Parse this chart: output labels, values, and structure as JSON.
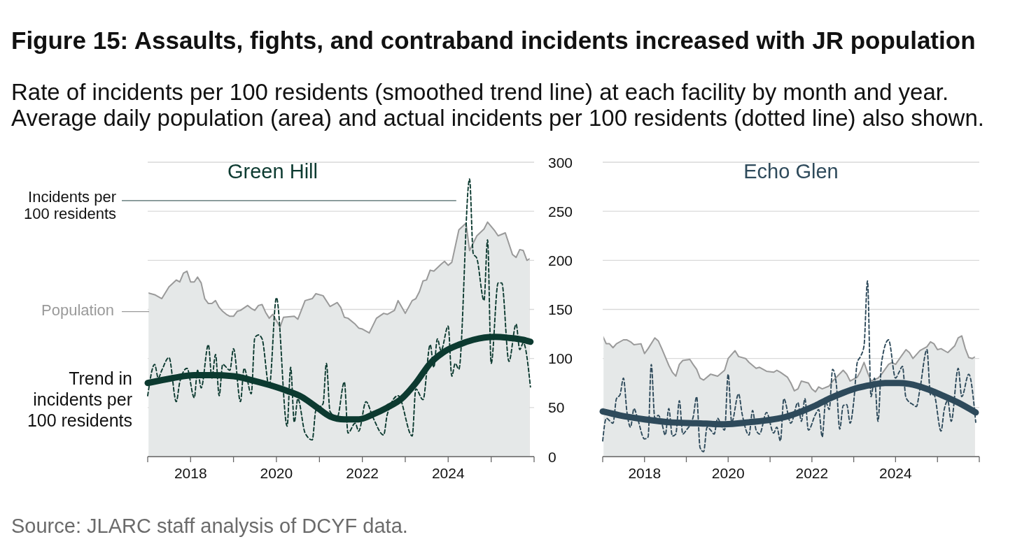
{
  "chart_data": [
    {
      "type": "other",
      "title": "Figure 15: Assaults, fights, and contraband incidents increased with JR population",
      "subtitle": "Rate of incidents per 100 residents (smoothed trend line) at each facility by month and year. Average daily population (area) and actual incidents per 100 residents (dotted line) also shown.",
      "annotations": [
        "Source: JLARC staff analysis of DCYF data."
      ]
    },
    {
      "type": "line",
      "title": "Green Hill",
      "xlim": [
        "2017",
        "2026"
      ],
      "xticks": [
        {
          "value": "2017",
          "label": null
        },
        "2018",
        {
          "value": "2019",
          "label": null
        },
        "2020",
        {
          "value": "2021",
          "label": null
        },
        "2022",
        {
          "value": "2023",
          "label": null
        },
        "2024",
        {
          "value": "2025",
          "label": null
        },
        {
          "value": "2026",
          "label": null
        }
      ],
      "ylim": [
        0,
        300
      ],
      "yticks": [
        0,
        50,
        100,
        150,
        200,
        250,
        300
      ],
      "grid": "y",
      "series": [
        {
          "name": "Population",
          "type": "area",
          "color": "#e5e8e8",
          "x": [
            "2017-01",
            "2017-03",
            "2017-05",
            "2017-07",
            "2017-09",
            "2017-10",
            "2017-11",
            "2017-12",
            "2018-01",
            "2018-02",
            "2018-03",
            "2018-04",
            "2018-05",
            "2018-06",
            "2018-07",
            "2018-08",
            "2018-09",
            "2018-10",
            "2018-11",
            "2018-12",
            "2019-01",
            "2019-02",
            "2019-03",
            "2019-05",
            "2019-06",
            "2019-07",
            "2019-08",
            "2019-09",
            "2019-10",
            "2019-11",
            "2019-12",
            "2020-02",
            "2020-03",
            "2020-06",
            "2020-07",
            "2020-09",
            "2020-11",
            "2020-12",
            "2021-02",
            "2021-04",
            "2021-06",
            "2021-07",
            "2021-08",
            "2021-09",
            "2021-11",
            "2021-12",
            "2022-01",
            "2022-03",
            "2022-05",
            "2022-07",
            "2022-08",
            "2022-10",
            "2022-11",
            "2023-01",
            "2023-03",
            "2023-04",
            "2023-05",
            "2023-06",
            "2023-07",
            "2023-08",
            "2023-09",
            "2023-11",
            "2023-12",
            "2024-01",
            "2024-02",
            "2024-04",
            "2024-06",
            "2024-07",
            "2024-09",
            "2024-11",
            "2024-12",
            "2025-02",
            "2025-03",
            "2025-05",
            "2025-07",
            "2025-08",
            "2025-09",
            "2025-10",
            "2025-11",
            "2025-12"
          ],
          "values": [
            167,
            165,
            161,
            173,
            180,
            178,
            187,
            189,
            178,
            178,
            183,
            177,
            161,
            156,
            156,
            159,
            152,
            148,
            145,
            143,
            143,
            148,
            149,
            154,
            151,
            149,
            154,
            155,
            147,
            141,
            145,
            132,
            142,
            143,
            140,
            159,
            161,
            166,
            164,
            153,
            157,
            152,
            142,
            141,
            135,
            131,
            130,
            126,
            141,
            146,
            145,
            149,
            159,
            146,
            159,
            161,
            168,
            179,
            180,
            190,
            189,
            196,
            199,
            195,
            198,
            231,
            238,
            210,
            225,
            232,
            239,
            230,
            225,
            228,
            206,
            203,
            211,
            210,
            200,
            202
          ]
        },
        {
          "name": "Trend in incidents per 100 residents",
          "type": "line",
          "color": "#0c3a30",
          "x": [
            "2017-01",
            "2017-08",
            "2018-02",
            "2018-07",
            "2019-01",
            "2019-06",
            "2019-11",
            "2020-04",
            "2020-08",
            "2020-12",
            "2021-04",
            "2021-08",
            "2021-12",
            "2022-04",
            "2022-08",
            "2022-12",
            "2023-04",
            "2023-08",
            "2023-12",
            "2024-04",
            "2024-08",
            "2025-02",
            "2025-06",
            "2025-10",
            "2025-12"
          ],
          "values": [
            75,
            80,
            83,
            83,
            82,
            78,
            73,
            67,
            61,
            51,
            41,
            38,
            38,
            43,
            50,
            59,
            75,
            95,
            107,
            114,
            119,
            122,
            121,
            119,
            117
          ]
        },
        {
          "name": "Incidents per 100 residents",
          "type": "line",
          "line_style": "dashed",
          "color": "#0c3a30",
          "x": [
            "2017-01",
            "2017-03",
            "2017-04",
            "2017-05",
            "2017-07",
            "2017-09",
            "2017-10",
            "2017-12",
            "2018-02",
            "2018-03",
            "2018-04",
            "2018-06",
            "2018-07",
            "2018-08",
            "2018-09",
            "2018-10",
            "2018-12",
            "2019-01",
            "2019-03",
            "2019-04",
            "2019-06",
            "2019-07",
            "2019-08",
            "2019-09",
            "2019-11",
            "2020-01",
            "2020-04",
            "2020-05",
            "2020-06",
            "2020-07",
            "2020-09",
            "2020-11",
            "2020-12",
            "2021-02",
            "2021-03",
            "2021-04",
            "2021-06",
            "2021-08",
            "2021-09",
            "2021-11",
            "2021-12",
            "2022-02",
            "2022-04",
            "2022-07",
            "2022-08",
            "2022-11",
            "2023-03",
            "2023-04",
            "2023-06",
            "2023-08",
            "2023-09",
            "2023-10",
            "2023-11",
            "2024-01",
            "2024-02",
            "2024-03",
            "2024-04",
            "2024-07",
            "2024-08",
            "2024-09",
            "2024-11",
            "2024-12",
            "2025-01",
            "2025-03",
            "2025-04",
            "2025-06",
            "2025-08",
            "2025-09",
            "2025-10",
            "2025-12"
          ],
          "values": [
            62,
            94,
            80,
            88,
            101,
            56,
            76,
            90,
            60,
            88,
            70,
            114,
            80,
            104,
            62,
            94,
            88,
            110,
            56,
            90,
            64,
            121,
            124,
            120,
            71,
            162,
            31,
            91,
            35,
            59,
            24,
            17,
            47,
            54,
            95,
            46,
            40,
            76,
            24,
            34,
            26,
            56,
            40,
            22,
            43,
            62,
            21,
            69,
            58,
            114,
            91,
            120,
            108,
            133,
            82,
            95,
            89,
            283,
            207,
            202,
            159,
            221,
            95,
            177,
            177,
            97,
            135,
            109,
            116,
            71
          ]
        }
      ]
    },
    {
      "type": "line",
      "title": "Echo Glen",
      "xlim": [
        "2017",
        "2026"
      ],
      "xticks": [
        {
          "value": "2017",
          "label": null
        },
        "2018",
        {
          "value": "2019",
          "label": null
        },
        "2020",
        {
          "value": "2021",
          "label": null
        },
        "2022",
        {
          "value": "2023",
          "label": null
        },
        "2024",
        {
          "value": "2025",
          "label": null
        },
        {
          "value": "2026",
          "label": null
        }
      ],
      "ylim": [
        0,
        300
      ],
      "yticks": [
        0,
        50,
        100,
        150,
        200,
        250,
        300
      ],
      "grid": "y",
      "tick_labels": "x",
      "series": [
        {
          "type": "area",
          "color": "#e5e8e8",
          "x": [
            "2017-01",
            "2017-02",
            "2017-03",
            "2017-04",
            "2017-05",
            "2017-07",
            "2017-08",
            "2017-09",
            "2017-10",
            "2017-12",
            "2018-01",
            "2018-02",
            "2018-04",
            "2018-05",
            "2018-06",
            "2018-08",
            "2018-09",
            "2018-10",
            "2018-11",
            "2018-12",
            "2019-02",
            "2019-03",
            "2019-04",
            "2019-05",
            "2019-06",
            "2019-08",
            "2019-10",
            "2019-12",
            "2020-01",
            "2020-03",
            "2020-04",
            "2020-06",
            "2020-07",
            "2020-09",
            "2020-10",
            "2020-12",
            "2021-02",
            "2021-03",
            "2021-04",
            "2021-06",
            "2021-07",
            "2021-08",
            "2021-09",
            "2021-10",
            "2021-12",
            "2022-01",
            "2022-02",
            "2022-03",
            "2022-04",
            "2022-06",
            "2022-07",
            "2022-10",
            "2022-11",
            "2022-12",
            "2023-02",
            "2023-03",
            "2023-04",
            "2023-05",
            "2023-06",
            "2023-08",
            "2023-09",
            "2023-11",
            "2023-12",
            "2024-01",
            "2024-03",
            "2024-04",
            "2024-05",
            "2024-06",
            "2024-07",
            "2024-08",
            "2024-10",
            "2024-11",
            "2024-12",
            "2025-01",
            "2025-02",
            "2025-04",
            "2025-06",
            "2025-07",
            "2025-08",
            "2025-09",
            "2025-10",
            "2025-11",
            "2025-12"
          ],
          "values": [
            123,
            115,
            115,
            111,
            115,
            119,
            119,
            117,
            114,
            115,
            105,
            110,
            121,
            118,
            110,
            93,
            86,
            82,
            94,
            98,
            99,
            94,
            89,
            80,
            78,
            84,
            82,
            88,
            100,
            108,
            102,
            100,
            96,
            90,
            91,
            87,
            86,
            88,
            86,
            81,
            75,
            67,
            69,
            77,
            75,
            69,
            66,
            71,
            69,
            72,
            77,
            88,
            84,
            77,
            81,
            87,
            96,
            86,
            77,
            80,
            84,
            94,
            96,
            94,
            104,
            109,
            106,
            100,
            104,
            108,
            112,
            117,
            115,
            109,
            110,
            106,
            113,
            121,
            123,
            110,
            101,
            100,
            102
          ]
        },
        {
          "type": "line",
          "color": "#2e4a5b",
          "x": [
            "2017-01",
            "2017-06",
            "2018-01",
            "2018-08",
            "2019-04",
            "2019-12",
            "2020-07",
            "2021-02",
            "2021-06",
            "2021-10",
            "2022-02",
            "2022-06",
            "2022-10",
            "2023-02",
            "2023-06",
            "2023-10",
            "2024-02",
            "2024-05",
            "2024-10",
            "2025-02",
            "2025-07",
            "2025-12"
          ],
          "values": [
            46,
            42,
            38,
            35,
            34,
            33,
            35,
            38,
            41,
            46,
            52,
            59,
            65,
            70,
            73,
            75,
            75,
            74,
            69,
            63,
            55,
            45
          ]
        },
        {
          "type": "line",
          "line_style": "dashed",
          "color": "#2e4a5b",
          "x": [
            "2017-01",
            "2017-02",
            "2017-04",
            "2017-05",
            "2017-06",
            "2017-07",
            "2017-08",
            "2017-09",
            "2017-10",
            "2017-11",
            "2018-01",
            "2018-02",
            "2018-03",
            "2018-04",
            "2018-05",
            "2018-06",
            "2018-07",
            "2018-08",
            "2018-09",
            "2018-10",
            "2018-11",
            "2018-12",
            "2019-01",
            "2019-03",
            "2019-04",
            "2019-05",
            "2019-06",
            "2019-07",
            "2019-08",
            "2019-09",
            "2019-10",
            "2019-11",
            "2019-12",
            "2020-01",
            "2020-02",
            "2020-04",
            "2020-05",
            "2020-07",
            "2020-08",
            "2020-09",
            "2020-10",
            "2020-12",
            "2021-02",
            "2021-03",
            "2021-04",
            "2021-05",
            "2021-07",
            "2021-09",
            "2021-10",
            "2021-11",
            "2021-12",
            "2022-02",
            "2022-03",
            "2022-04",
            "2022-05",
            "2022-06",
            "2022-07",
            "2022-08",
            "2022-09",
            "2022-10",
            "2022-11",
            "2022-12",
            "2023-01",
            "2023-02",
            "2023-03",
            "2023-04",
            "2023-05",
            "2023-06",
            "2023-07",
            "2023-08",
            "2023-09",
            "2023-11",
            "2024-01",
            "2024-02",
            "2024-03",
            "2024-04",
            "2024-06",
            "2024-07",
            "2024-08",
            "2024-10",
            "2024-11",
            "2024-12",
            "2025-02",
            "2025-03",
            "2025-04",
            "2025-05",
            "2025-07",
            "2025-08",
            "2025-10",
            "2025-12"
          ],
          "values": [
            16,
            39,
            34,
            59,
            63,
            80,
            45,
            30,
            49,
            39,
            18,
            20,
            94,
            39,
            42,
            34,
            22,
            49,
            21,
            23,
            57,
            23,
            27,
            40,
            61,
            9,
            5,
            30,
            27,
            23,
            39,
            32,
            27,
            84,
            35,
            64,
            44,
            22,
            47,
            27,
            23,
            45,
            24,
            30,
            16,
            59,
            34,
            55,
            36,
            59,
            27,
            43,
            48,
            20,
            56,
            48,
            89,
            75,
            28,
            52,
            53,
            34,
            56,
            96,
            102,
            113,
            179,
            61,
            80,
            36,
            96,
            119,
            80,
            86,
            92,
            60,
            53,
            51,
            69,
            109,
            63,
            63,
            26,
            48,
            57,
            36,
            90,
            61,
            84,
            35
          ]
        }
      ]
    }
  ]
}
